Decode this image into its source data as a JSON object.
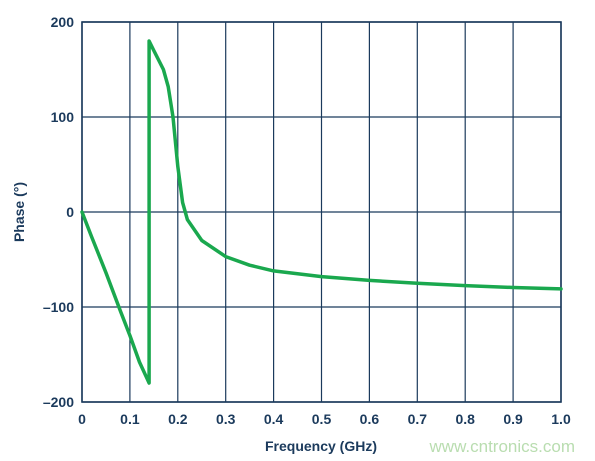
{
  "chart_data": {
    "type": "line",
    "title": "",
    "xlabel": "Frequency (GHz)",
    "ylabel": "Phase (°)",
    "xlim": [
      0,
      1.0
    ],
    "ylim": [
      -200,
      200
    ],
    "xticks": [
      0,
      0.1,
      0.2,
      0.3,
      0.4,
      0.5,
      0.6,
      0.7,
      0.8,
      0.9,
      1.0
    ],
    "xtick_labels": [
      "0",
      "0.1",
      "0.2",
      "0.3",
      "0.4",
      "0.5",
      "0.6",
      "0.7",
      "0.8",
      "0.9",
      "1.0"
    ],
    "yticks": [
      200,
      100,
      0,
      -100,
      -200
    ],
    "ytick_labels": [
      "200",
      "100",
      "0",
      "–100",
      "–200"
    ],
    "grid": true,
    "series": [
      {
        "name": "",
        "color": "#1aa84e",
        "x": [
          0,
          0.02,
          0.05,
          0.08,
          0.1,
          0.12,
          0.14,
          0.14,
          0.15,
          0.17,
          0.18,
          0.19,
          0.2,
          0.21,
          0.22,
          0.25,
          0.3,
          0.35,
          0.4,
          0.5,
          0.6,
          0.7,
          0.8,
          0.9,
          1.0
        ],
        "y": [
          0,
          -26,
          -64,
          -104,
          -130,
          -158,
          -180,
          180,
          170,
          150,
          132,
          100,
          48,
          10,
          -8,
          -30,
          -47,
          -56,
          -62,
          -68,
          -72,
          -75,
          -77.5,
          -79.5,
          -81
        ]
      }
    ]
  },
  "watermark": "www.cntronics.com"
}
